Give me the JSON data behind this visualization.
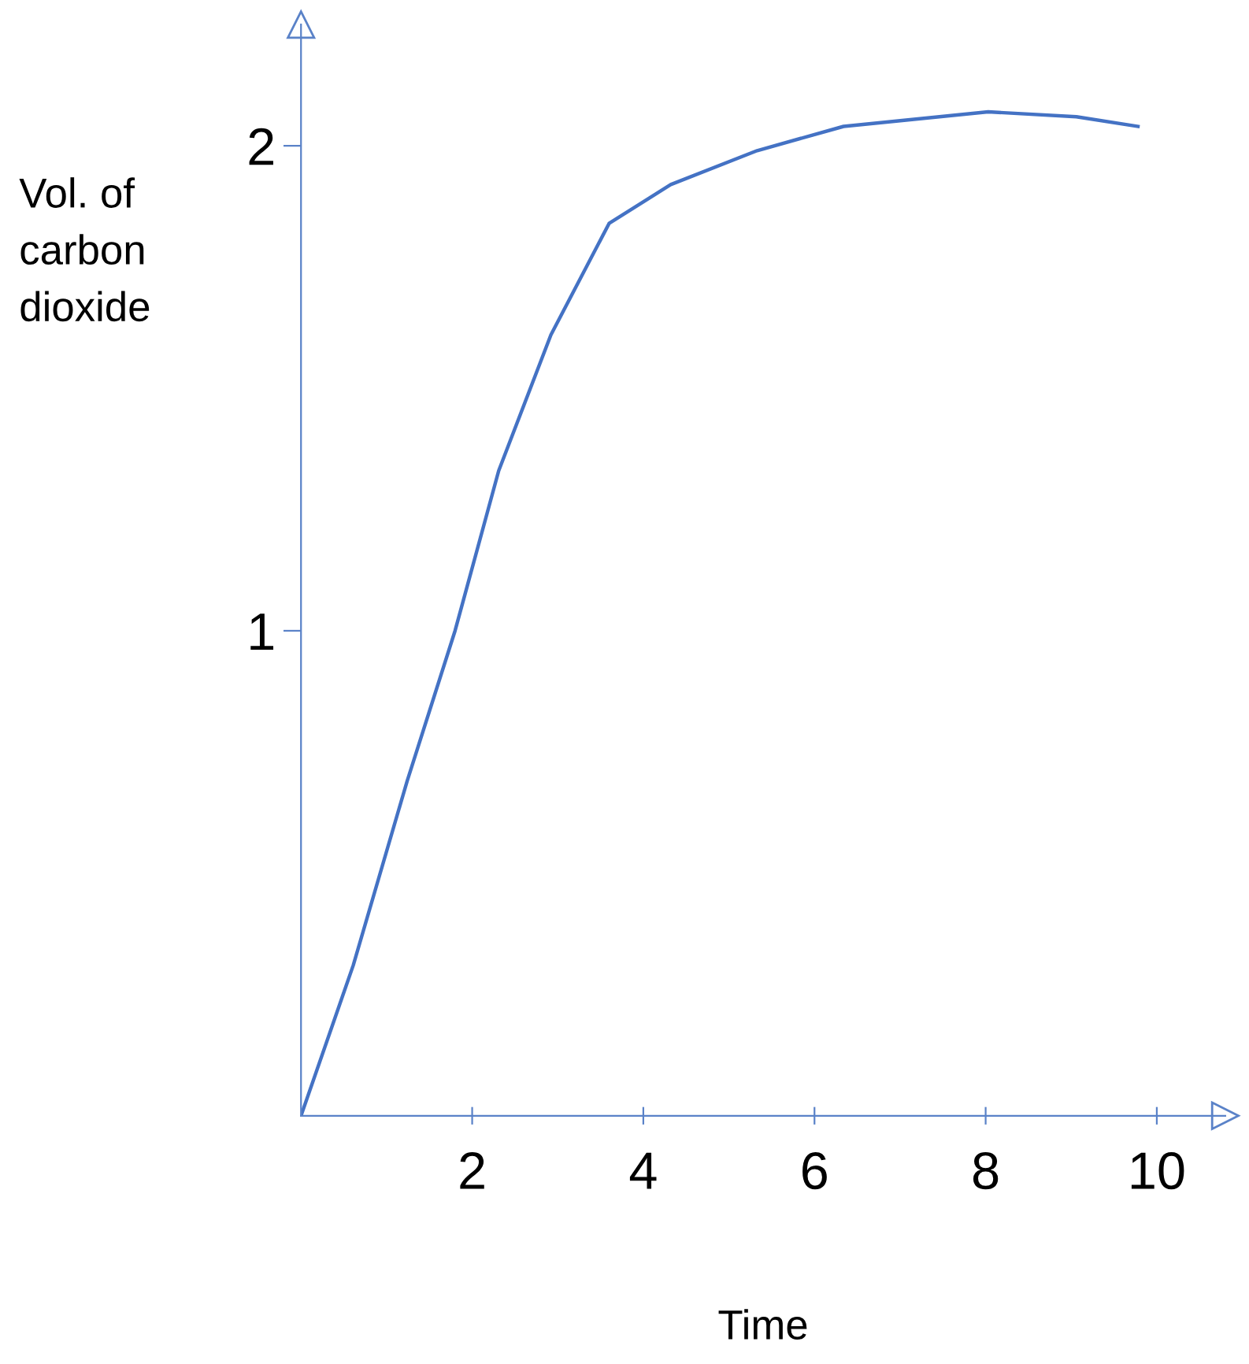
{
  "chart_data": {
    "type": "line",
    "xlabel": "Time",
    "ylabel": "Vol. of\ncarbon\ndioxide",
    "x": [
      0,
      0.61,
      1.24,
      1.8,
      2.31,
      2.92,
      3.6,
      4.32,
      5.33,
      6.34,
      8.03,
      9.06,
      9.78
    ],
    "series": [
      {
        "color": "#4472c4",
        "values": [
          0,
          0.31,
          0.69,
          1.0,
          1.33,
          1.61,
          1.84,
          1.92,
          1.99,
          2.04,
          2.07,
          2.06,
          2.04
        ]
      }
    ],
    "xlim": [
      0,
      10.8
    ],
    "ylim": [
      0,
      2.25
    ],
    "xticks": [
      2,
      4,
      6,
      8,
      10
    ],
    "yticks": [
      1,
      2
    ],
    "grid": false,
    "marker": "none",
    "line_style": "solid"
  }
}
